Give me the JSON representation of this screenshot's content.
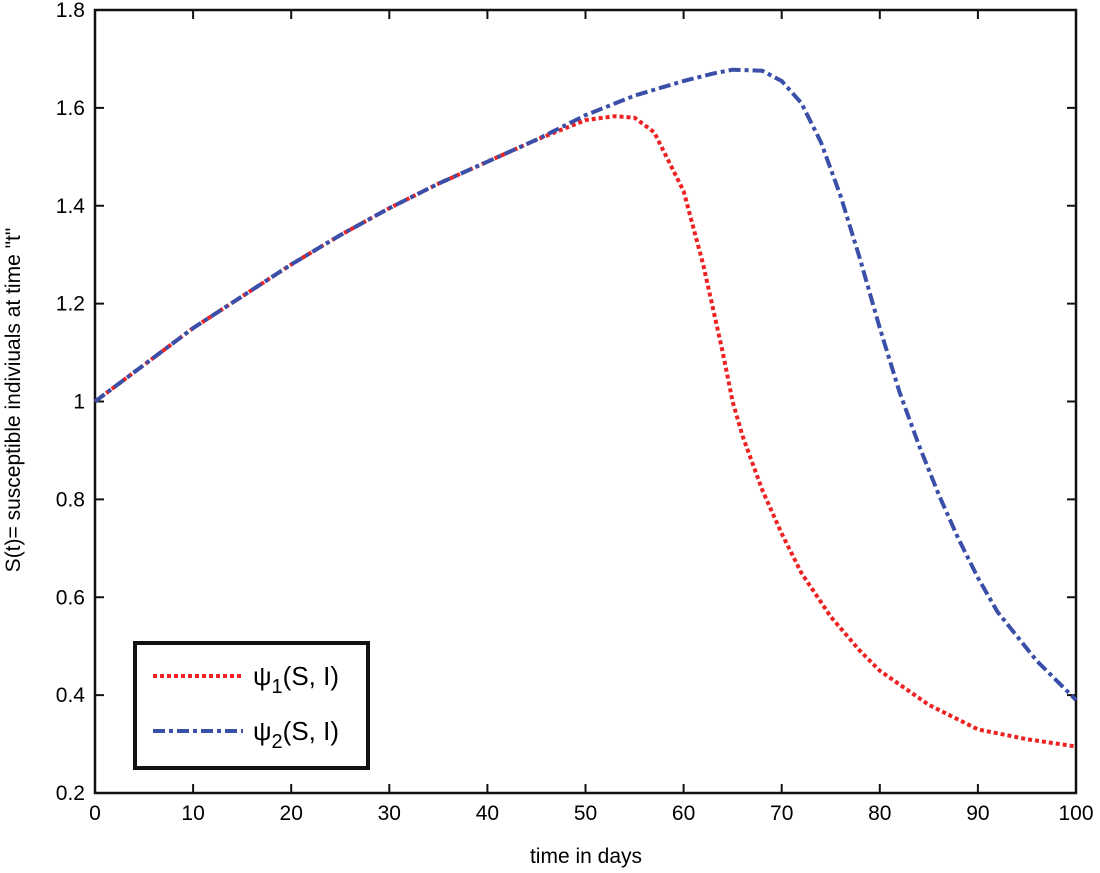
{
  "chart_data": {
    "type": "line",
    "title": "",
    "xlabel": "time in days",
    "ylabel": "S(t)= susceptible indiviuals at time \"t\"",
    "xlim": [
      0,
      100
    ],
    "ylim": [
      0.2,
      1.8
    ],
    "xticks": [
      "0",
      "10",
      "20",
      "30",
      "40",
      "50",
      "60",
      "70",
      "80",
      "90",
      "100"
    ],
    "yticks": [
      "0.2",
      "0.4",
      "0.6",
      "0.8",
      "1",
      "1.2",
      "1.4",
      "1.6",
      "1.8"
    ],
    "grid": false,
    "legend_position": "bottom-left",
    "series": [
      {
        "name": "ψ1(S, I)",
        "legend": {
          "symbol": "ψ",
          "sub": "1",
          "args": "(S, I)"
        },
        "color": "#ee2222",
        "style": "dotted",
        "x": [
          0,
          5,
          10,
          15,
          20,
          25,
          30,
          35,
          40,
          45,
          50,
          53,
          55,
          57,
          58,
          60,
          62,
          64,
          65,
          66,
          68,
          70,
          72,
          75,
          78,
          80,
          85,
          90,
          95,
          100
        ],
        "y": [
          1.0,
          1.075,
          1.15,
          1.215,
          1.28,
          1.34,
          1.395,
          1.445,
          1.49,
          1.535,
          1.575,
          1.583,
          1.58,
          1.55,
          1.51,
          1.43,
          1.28,
          1.1,
          1.0,
          0.93,
          0.82,
          0.73,
          0.65,
          0.56,
          0.49,
          0.45,
          0.38,
          0.33,
          0.31,
          0.295
        ]
      },
      {
        "name": "ψ2(S, I)",
        "legend": {
          "symbol": "ψ",
          "sub": "2",
          "args": "(S, I)"
        },
        "color": "#3a4fa8",
        "style": "dashdot",
        "x": [
          0,
          5,
          10,
          15,
          20,
          25,
          30,
          35,
          40,
          45,
          50,
          55,
          60,
          63,
          65,
          68,
          70,
          72,
          74,
          76,
          78,
          80,
          82,
          84,
          86,
          88,
          90,
          92,
          94,
          96,
          98,
          100
        ],
        "y": [
          1.0,
          1.075,
          1.15,
          1.215,
          1.28,
          1.34,
          1.395,
          1.445,
          1.49,
          1.535,
          1.585,
          1.625,
          1.655,
          1.67,
          1.678,
          1.676,
          1.655,
          1.61,
          1.53,
          1.42,
          1.29,
          1.15,
          1.02,
          0.91,
          0.81,
          0.72,
          0.64,
          0.57,
          0.52,
          0.47,
          0.43,
          0.39
        ]
      }
    ]
  }
}
